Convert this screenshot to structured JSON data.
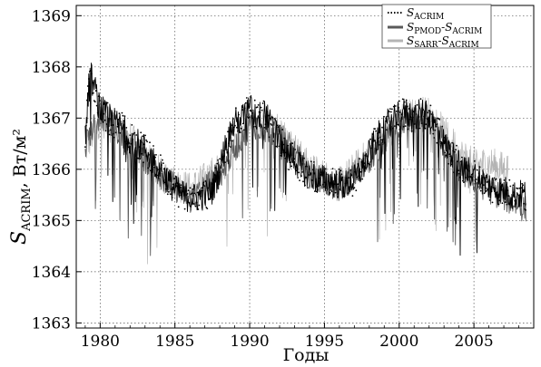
{
  "chart_data": {
    "type": "line",
    "title": "",
    "xlabel": "Годы",
    "ylabel": {
      "main": "S",
      "sub": "ACRIM",
      "unit": ", Вт/м²"
    },
    "xlim": [
      1978.4,
      2009.0
    ],
    "ylim": [
      1362.9,
      1369.2
    ],
    "x_ticks": [
      1980,
      1985,
      1990,
      1995,
      2000,
      2005
    ],
    "x_tick_labels": [
      "1980",
      "1985",
      "1990",
      "1995",
      "2000",
      "2005"
    ],
    "y_ticks": [
      1363,
      1364,
      1365,
      1366,
      1367,
      1368,
      1369
    ],
    "y_tick_labels": [
      "1363",
      "1364",
      "1365",
      "1366",
      "1367",
      "1368",
      "1369"
    ],
    "grid": true,
    "legend_position": "top-right",
    "legend": [
      {
        "main": "S",
        "sub": "ACRIM",
        "style": "dotted",
        "color": "#000000"
      },
      {
        "main": "S",
        "sub": "PMOD",
        "main2": "-S",
        "sub2": "ACRIM",
        "style": "solid",
        "color": "#5a5a5a"
      },
      {
        "main": "S",
        "sub": "SARR",
        "main2": "-S",
        "sub2": "ACRIM",
        "style": "solid",
        "color": "#b4b4b4"
      }
    ],
    "series": [
      {
        "name": "S_ACRIM",
        "color": "#000000",
        "baseline": {
          "x": [
            1979.0,
            1979.3,
            1979.6,
            1980.0,
            1980.5,
            1981.0,
            1981.5,
            1982.0,
            1982.5,
            1983.0,
            1983.5,
            1984.0,
            1984.5,
            1985.0,
            1985.5,
            1986.0,
            1986.5,
            1987.0,
            1987.5,
            1988.0,
            1988.5,
            1989.0,
            1989.5,
            1990.0,
            1990.5,
            1991.0,
            1991.5,
            1992.0,
            1992.5,
            1993.0,
            1993.5,
            1994.0,
            1994.5,
            1995.0,
            1995.5,
            1996.0,
            1996.5,
            1997.0,
            1997.5,
            1998.0,
            1998.5,
            1999.0,
            1999.5,
            2000.0,
            2000.5,
            2001.0,
            2001.5,
            2002.0,
            2002.5,
            2003.0,
            2003.5,
            2004.0,
            2004.5,
            2005.0,
            2005.5,
            2006.0,
            2006.5,
            2007.0,
            2007.5,
            2008.0,
            2008.5
          ],
          "y": [
            1366.6,
            1367.9,
            1367.6,
            1367.2,
            1367.0,
            1366.9,
            1366.8,
            1366.6,
            1366.5,
            1366.4,
            1366.2,
            1366.0,
            1365.8,
            1365.6,
            1365.5,
            1365.45,
            1365.45,
            1365.5,
            1365.6,
            1366.0,
            1366.6,
            1366.9,
            1367.0,
            1367.2,
            1367.0,
            1367.1,
            1366.8,
            1366.6,
            1366.3,
            1366.2,
            1366.0,
            1365.9,
            1365.8,
            1365.8,
            1365.75,
            1365.7,
            1365.7,
            1365.8,
            1366.0,
            1366.3,
            1366.6,
            1366.8,
            1367.0,
            1367.1,
            1367.1,
            1367.0,
            1367.1,
            1367.0,
            1366.8,
            1366.5,
            1366.3,
            1366.1,
            1366.0,
            1365.9,
            1365.8,
            1365.7,
            1365.6,
            1365.6,
            1365.5,
            1365.5,
            1365.5
          ]
        }
      },
      {
        "name": "S_PMOD-S_ACRIM",
        "color": "#5a5a5a",
        "baseline": {
          "x": [
            1979.0,
            1980.0,
            1982.0,
            1984.0,
            1986.0,
            1988.0,
            1990.0,
            1992.0,
            1994.0,
            1996.0,
            1998.0,
            2000.0,
            2002.0,
            2004.0,
            2006.0,
            2008.0,
            2008.5
          ],
          "y": [
            1366.5,
            1367.1,
            1366.5,
            1365.9,
            1365.4,
            1365.9,
            1366.9,
            1366.7,
            1365.9,
            1365.6,
            1366.2,
            1366.9,
            1367.0,
            1366.0,
            1365.6,
            1365.3,
            1365.2
          ]
        }
      },
      {
        "name": "S_SARR-S_ACRIM",
        "color": "#b4b4b4",
        "baseline": {
          "x": [
            1979.0,
            1980.0,
            1982.0,
            1984.0,
            1986.0,
            1988.0,
            1990.0,
            1992.0,
            1994.0,
            1996.0,
            1998.0,
            2000.0,
            2002.0,
            2004.0,
            2005.0,
            2006.0,
            2007.0,
            2007.3
          ],
          "y": [
            1366.4,
            1367.0,
            1366.6,
            1365.9,
            1365.6,
            1366.0,
            1366.9,
            1366.8,
            1366.0,
            1365.7,
            1366.3,
            1367.0,
            1367.1,
            1366.3,
            1366.1,
            1366.1,
            1366.0,
            1366.0
          ]
        }
      }
    ]
  }
}
